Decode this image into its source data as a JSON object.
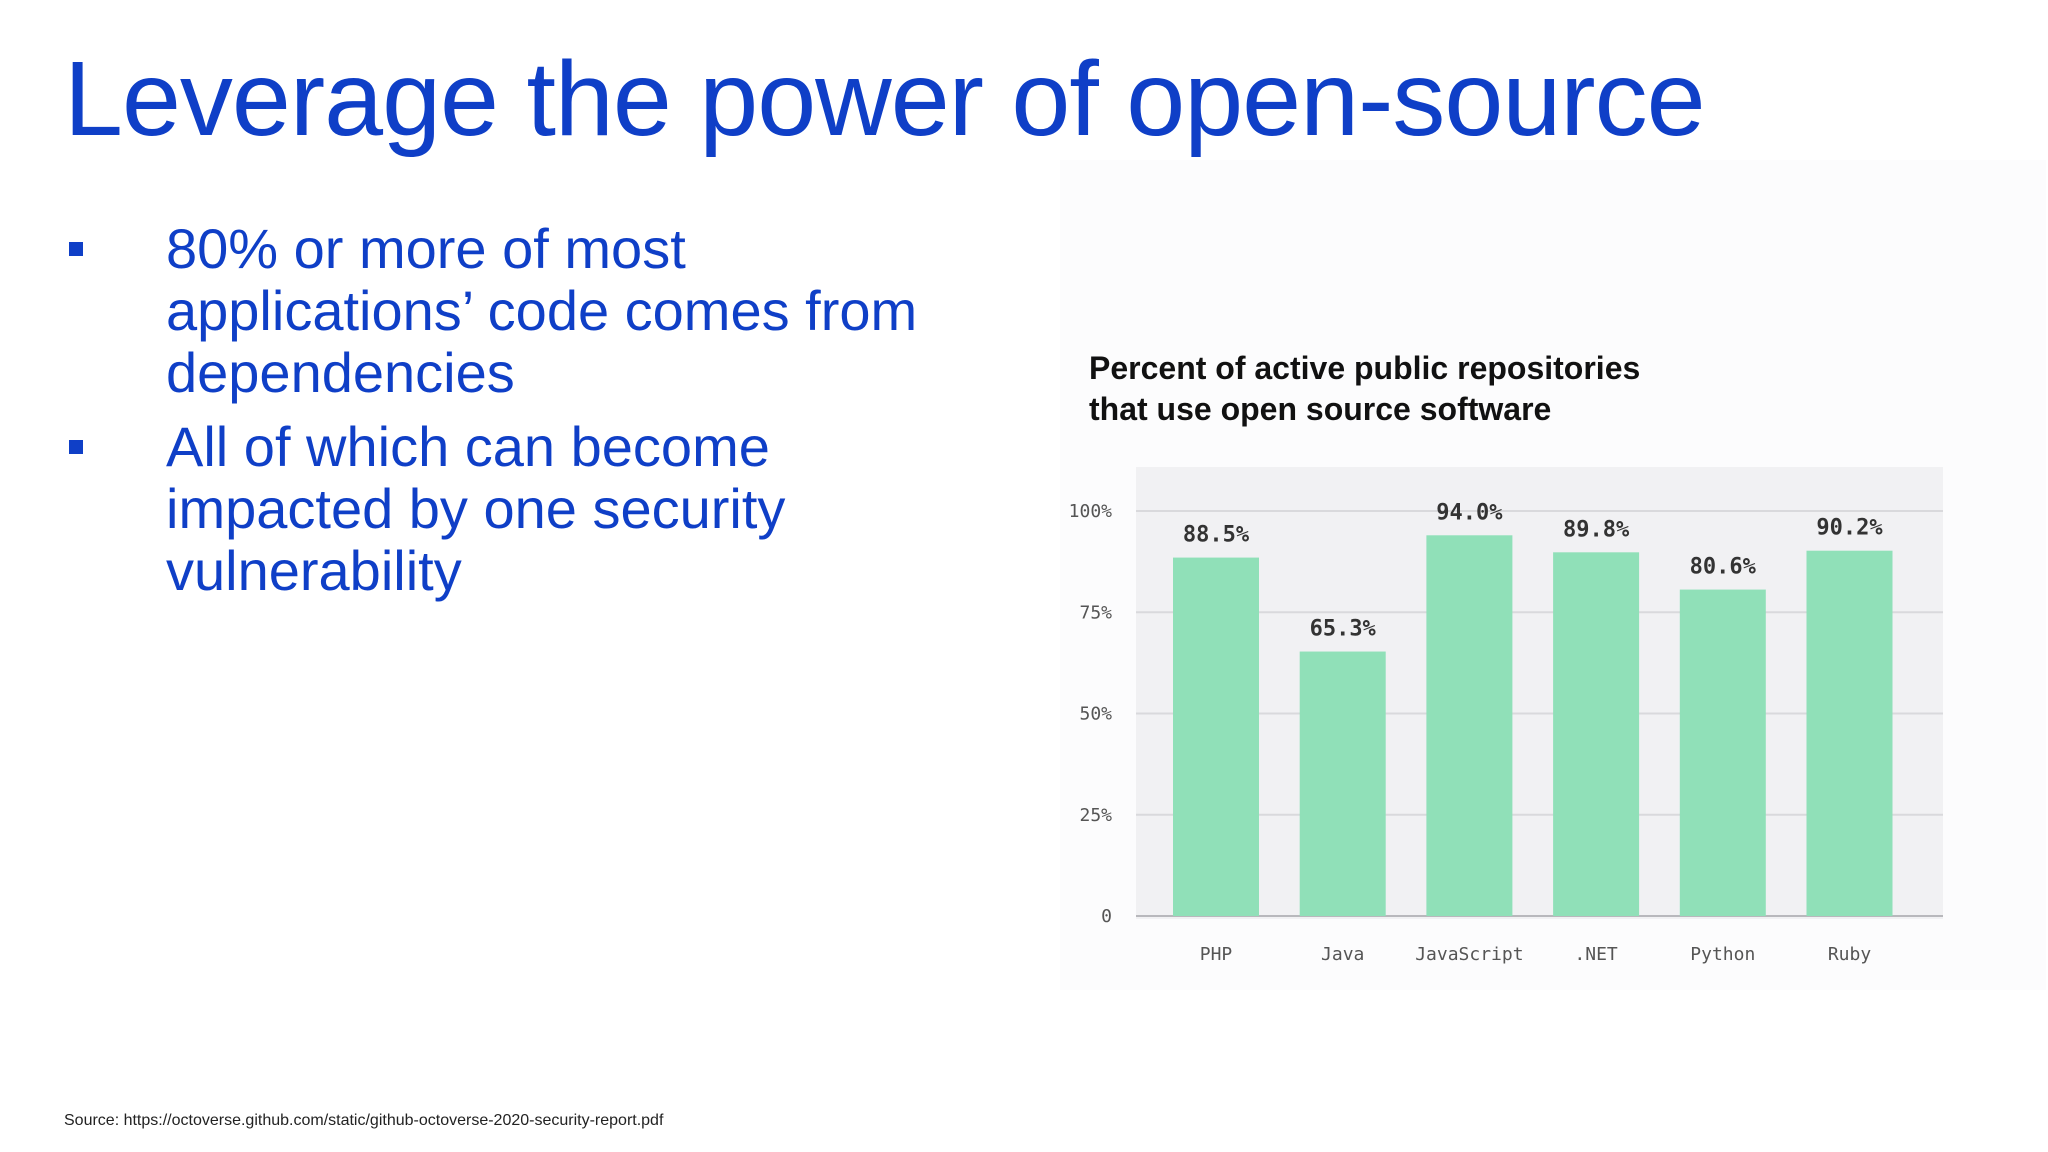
{
  "slide": {
    "title": "Leverage the power of open-source",
    "bullets": [
      "80% or more of most applications’ code comes from dependencies",
      "All of which can become impacted by one security vulnerability"
    ],
    "source": "Source: https://octoverse.github.com/static/github-octoverse-2020-security-report.pdf"
  },
  "colors": {
    "title": "#0f3fc7",
    "bar": "#90e0b8",
    "plot_background": "#f1f1f3",
    "gridline": "#d9d9dc"
  },
  "chart_data": {
    "type": "bar",
    "title": "Percent of active public repositories\nthat use open source software",
    "categories": [
      "PHP",
      "Java",
      "JavaScript",
      ".NET",
      "Python",
      "Ruby"
    ],
    "values": [
      88.5,
      65.3,
      94.0,
      89.8,
      80.6,
      90.2
    ],
    "value_labels": [
      "88.5%",
      "65.3%",
      "94.0%",
      "89.8%",
      "80.6%",
      "90.2%"
    ],
    "y_ticks": [
      0,
      25,
      50,
      75,
      100
    ],
    "y_tick_labels": [
      "0",
      "25%",
      "50%",
      "75%",
      "100%"
    ],
    "ylim": [
      0,
      100
    ],
    "xlabel": "",
    "ylabel": "",
    "grid": true,
    "legend": "none"
  }
}
